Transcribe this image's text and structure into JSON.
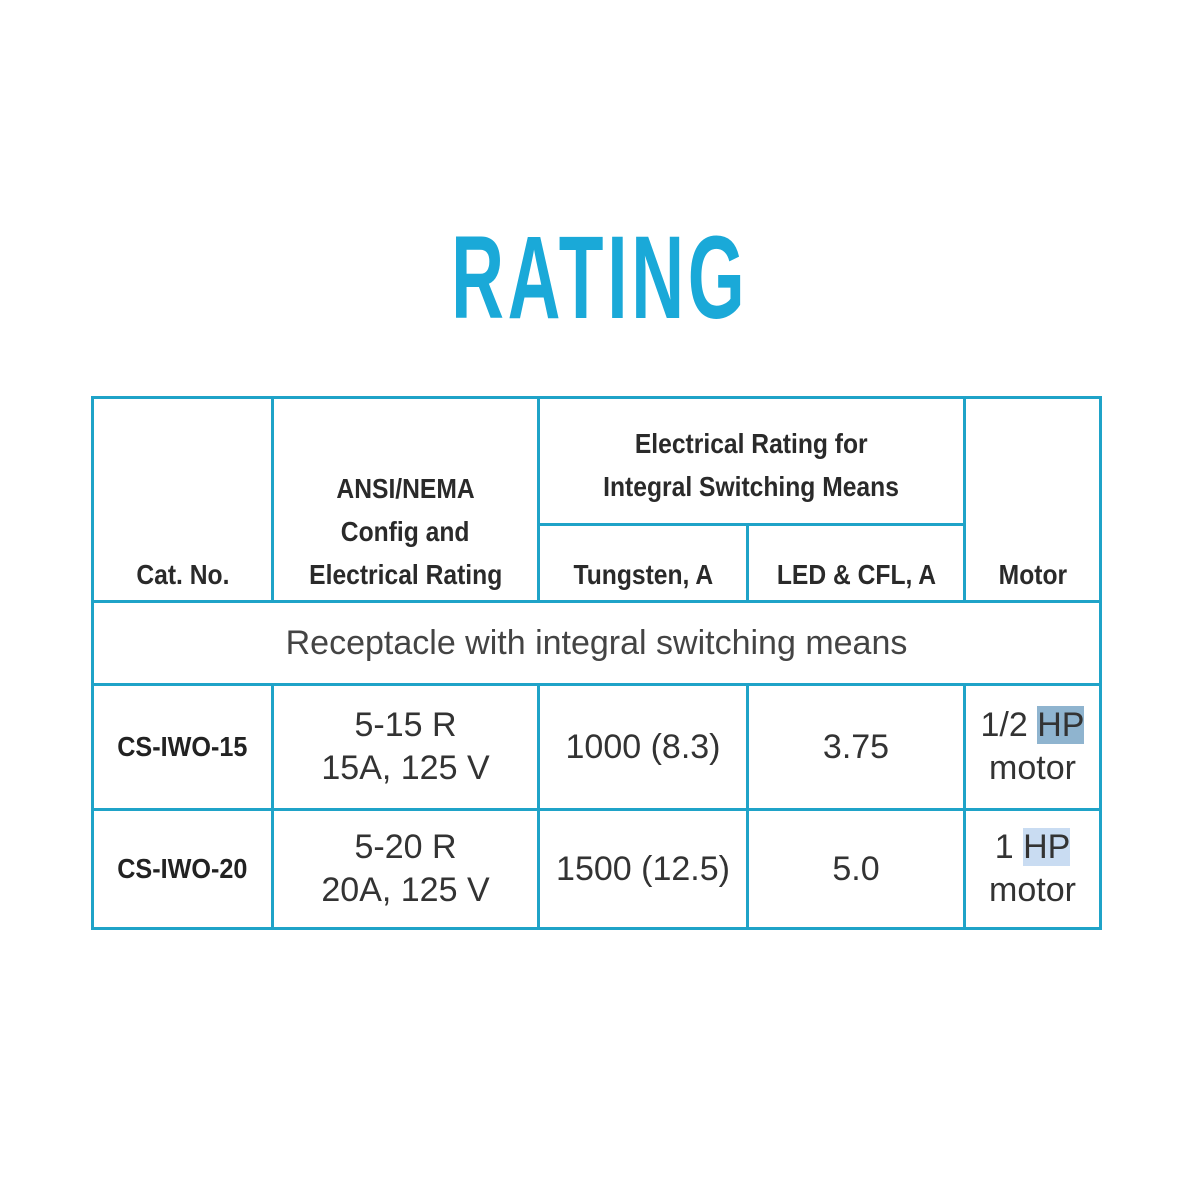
{
  "title": "RATING",
  "colors": {
    "accent": "#1aa9d8",
    "border": "#1fa3c8",
    "highlight_selected": "#8fb4cf",
    "highlight_hover": "#c9dcf2"
  },
  "table": {
    "headers": {
      "cat_no": "Cat. No.",
      "config": [
        "ANSI/NEMA",
        "Config and",
        "Electrical Rating"
      ],
      "group": [
        "Electrical Rating for",
        "Integral Switching Means"
      ],
      "tungsten": "Tungsten, A",
      "led_cfl": "LED & CFL, A",
      "motor": "Motor"
    },
    "section_label": "Receptacle with integral switching means",
    "rows": [
      {
        "cat_no": "CS-IWO-15",
        "config": [
          "5-15 R",
          "15A, 125 V"
        ],
        "tungsten": "1000 (8.3)",
        "led_cfl": "3.75",
        "motor_pre": "1/2",
        "motor_hp": "HP",
        "motor_post": "motor"
      },
      {
        "cat_no": "CS-IWO-20",
        "config": [
          "5-20 R",
          "20A, 125 V"
        ],
        "tungsten": "1500 (12.5)",
        "led_cfl": "5.0",
        "motor_pre": "1",
        "motor_hp": "HP",
        "motor_post": "motor"
      }
    ]
  }
}
